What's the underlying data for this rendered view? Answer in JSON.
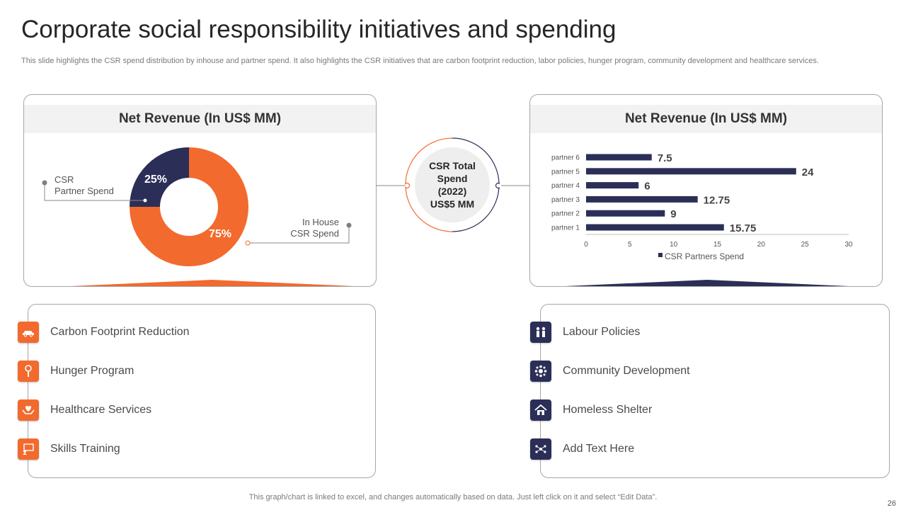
{
  "slide": {
    "title": "Corporate social responsibility initiatives and spending",
    "subtitle": "This slide highlights the CSR spend distribution by inhouse and partner spend. It also highlights the CSR initiatives that are carbon footprint reduction, labor policies, hunger program, community development and healthcare services.",
    "footer": "This graph/chart is linked to excel,  and changes automatically based on data. Just left click on it and select “Edit Data”.",
    "page_number": "26"
  },
  "colors": {
    "orange": "#f26a2e",
    "navy": "#2b2f57"
  },
  "left_panel": {
    "heading": "Net Revenue (In US$ MM)",
    "partner_label_line1": "CSR",
    "partner_label_line2": "Partner Spend",
    "inhouse_label_line1": "In House",
    "inhouse_label_line2": "CSR Spend"
  },
  "right_panel": {
    "heading": "Net Revenue (In US$ MM)"
  },
  "center": {
    "text": "CSR Total\nSpend\n(2022)\nUS$5 MM"
  },
  "chart_data": [
    {
      "type": "pie",
      "variant": "donut",
      "labels": [
        "CSR Partner Spend",
        "In House CSR Spend"
      ],
      "values": [
        25,
        75
      ],
      "value_labels": [
        "25%",
        "75%"
      ],
      "colors": [
        "#2b2f57",
        "#f26a2e"
      ]
    },
    {
      "type": "bar",
      "orientation": "horizontal",
      "categories": [
        "partner 1",
        "partner 2",
        "partner 3",
        "partner 4",
        "partner 5",
        "partner 6"
      ],
      "series": [
        {
          "name": "CSR Partners Spend",
          "values": [
            15.75,
            9,
            12.75,
            6,
            24,
            7.5
          ]
        }
      ],
      "value_labels": [
        "15.75",
        "9",
        "12.75",
        "6",
        "24",
        "7.5"
      ],
      "xlim": [
        0,
        30
      ],
      "xticks": [
        "0",
        "5",
        "10",
        "15",
        "20",
        "25",
        "30"
      ],
      "legend": "bottom",
      "color": "#2b2f57"
    }
  ],
  "initiatives_left": [
    {
      "label": "Carbon Footprint Reduction",
      "icon": "car-icon"
    },
    {
      "label": "Hunger Program",
      "icon": "food-icon"
    },
    {
      "label": "Healthcare Services",
      "icon": "care-hands-icon"
    },
    {
      "label": "Skills Training",
      "icon": "training-icon"
    }
  ],
  "initiatives_right": [
    {
      "label": "Labour Policies",
      "icon": "workers-icon"
    },
    {
      "label": "Community Development",
      "icon": "community-icon"
    },
    {
      "label": "Homeless Shelter",
      "icon": "shelter-icon"
    },
    {
      "label": "Add Text Here",
      "icon": "network-icon"
    }
  ]
}
